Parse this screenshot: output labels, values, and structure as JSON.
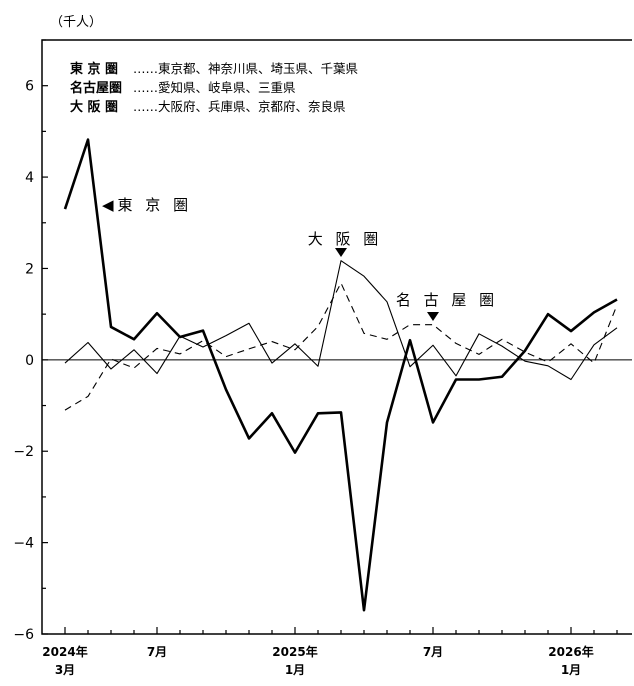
{
  "chart_data": {
    "type": "line",
    "unit_label": "（千人）",
    "ylim": [
      -6,
      7
    ],
    "y_ticks": [
      6,
      4,
      2,
      0,
      -2,
      -4,
      -6
    ],
    "y_tick_labels": [
      "6",
      "4",
      "2",
      "0",
      "−2",
      "−4",
      "−6"
    ],
    "x_tick_labels": [
      {
        "index": 0,
        "line1": "2024年",
        "line2": "3月"
      },
      {
        "index": 4,
        "line1": "7月",
        "line2": ""
      },
      {
        "index": 10,
        "line1": "2025年",
        "line2": "1月"
      },
      {
        "index": 16,
        "line1": "7月",
        "line2": ""
      },
      {
        "index": 22,
        "line1": "2026年",
        "line2": "1月"
      }
    ],
    "categories": [
      "2024-03",
      "2024-04",
      "2024-05",
      "2024-06",
      "2024-07",
      "2024-08",
      "2024-09",
      "2024-10",
      "2024-11",
      "2024-12",
      "2025-01",
      "2025-02",
      "2025-03",
      "2025-04",
      "2025-05",
      "2025-06",
      "2025-07",
      "2025-08",
      "2025-09",
      "2025-10",
      "2025-11",
      "2025-12",
      "2026-01",
      "2026-02",
      "2026-03"
    ],
    "legend": [
      {
        "key": "東 京 圏",
        "desc": "……東京都、神奈川県、埼玉県、千葉県"
      },
      {
        "key": "名古屋圏",
        "desc": "……愛知県、岐阜県、三重県"
      },
      {
        "key": "大 阪 圏",
        "desc": "……大阪府、兵庫県、京都府、奈良県"
      }
    ],
    "series": [
      {
        "name": "東 京 圏",
        "style": "thick",
        "values": [
          3.3,
          4.82,
          0.72,
          0.45,
          1.02,
          0.5,
          0.64,
          -0.65,
          -1.72,
          -1.17,
          -2.03,
          -1.17,
          -1.15,
          -5.48,
          -1.37,
          0.43,
          -1.37,
          -0.43,
          -0.43,
          -0.37,
          0.2,
          1.0,
          0.63,
          1.04,
          1.32
        ]
      },
      {
        "name": "大 阪 圏",
        "style": "dashed",
        "values": [
          -1.1,
          -0.8,
          0.02,
          -0.18,
          0.25,
          0.13,
          0.42,
          0.07,
          0.24,
          0.4,
          0.22,
          0.73,
          1.68,
          0.58,
          0.45,
          0.77,
          0.77,
          0.36,
          0.12,
          0.45,
          0.17,
          -0.05,
          0.35,
          -0.07,
          1.2
        ]
      },
      {
        "name": "名 古 屋 圏",
        "style": "thin",
        "values": [
          -0.07,
          0.38,
          -0.2,
          0.22,
          -0.3,
          0.52,
          0.28,
          0.53,
          0.8,
          -0.07,
          0.35,
          -0.14,
          2.17,
          1.83,
          1.27,
          -0.15,
          0.32,
          -0.35,
          0.57,
          0.3,
          -0.03,
          -0.13,
          -0.43,
          0.33,
          0.7
        ]
      }
    ],
    "annotations": [
      {
        "text": "◀東 京 圏",
        "series": "東 京 圏"
      },
      {
        "text": "大 阪 圏",
        "series": "大 阪 圏",
        "pointer_index": 12
      },
      {
        "text": "名 古 屋 圏",
        "series": "名 古 屋 圏",
        "pointer_index": 16
      }
    ]
  }
}
